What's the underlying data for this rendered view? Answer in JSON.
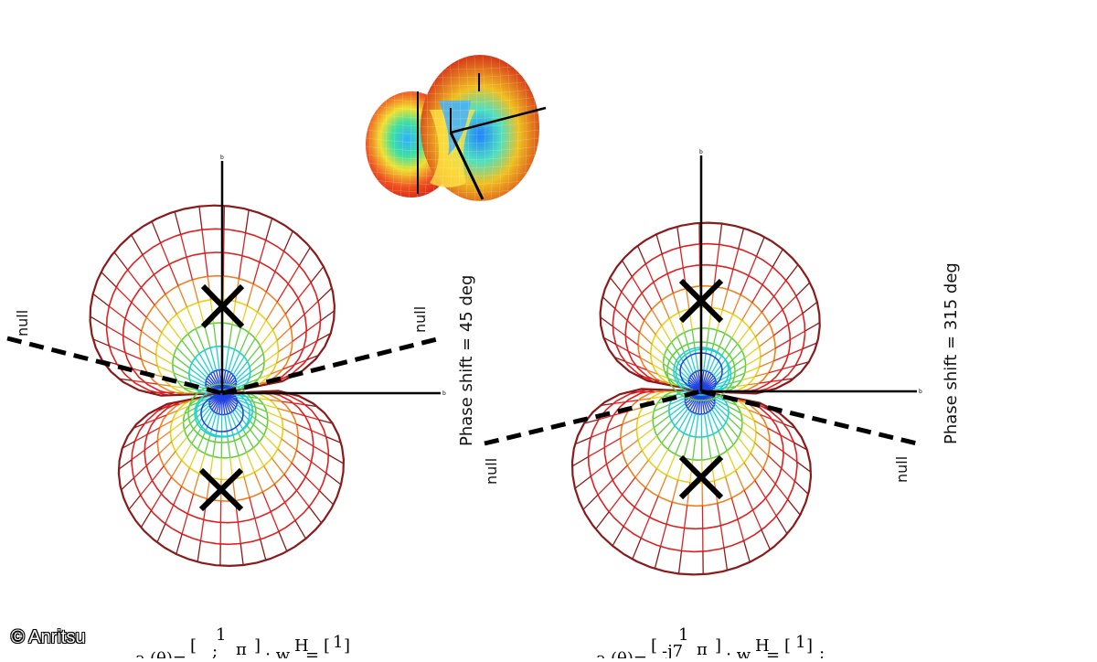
{
  "credit": "© Anritsu",
  "left_pattern": {
    "phase_label": "Phase shift = 45 deg",
    "null_left": "null",
    "null_right": "null"
  },
  "right_pattern": {
    "phase_label": "Phase shift = 315 deg",
    "null_left": "null",
    "null_right": "null"
  },
  "formula_left": {
    "prefix": "a",
    "theta": "(θ)=",
    "top": "1",
    "bottom": "π",
    "mid": ";",
    "w": "; w",
    "wsup": "H",
    "eq": "=",
    "wtop": "1"
  },
  "formula_right": {
    "prefix": "a",
    "theta": "(θ)=",
    "top": "1",
    "bottom": "π",
    "mid": "-j7",
    "w": "; w",
    "wsup": "H",
    "eq": "=",
    "wtop": "1",
    "tail": ";"
  },
  "colors": {
    "outer": "#8b1a1a",
    "red": "#e02020",
    "orange": "#f08020",
    "yellow": "#e8d020",
    "green": "#60d040",
    "cyan": "#20d0d0",
    "blue": "#2040e0"
  }
}
